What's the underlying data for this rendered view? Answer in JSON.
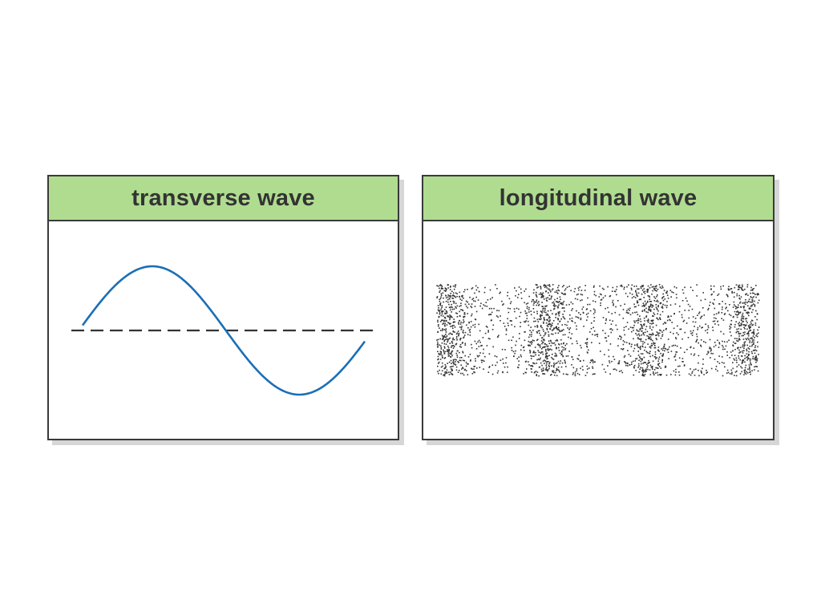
{
  "panels": {
    "transverse": {
      "title": "transverse wave",
      "wave_color": "#1a6fb5",
      "axis_color": "#333333"
    },
    "longitudinal": {
      "title": "longitudinal wave",
      "particle_color": "#333333"
    }
  },
  "colors": {
    "header_fill": "#b0dc90",
    "border": "#3a3a3a",
    "shadow": "#d6d6d6"
  }
}
